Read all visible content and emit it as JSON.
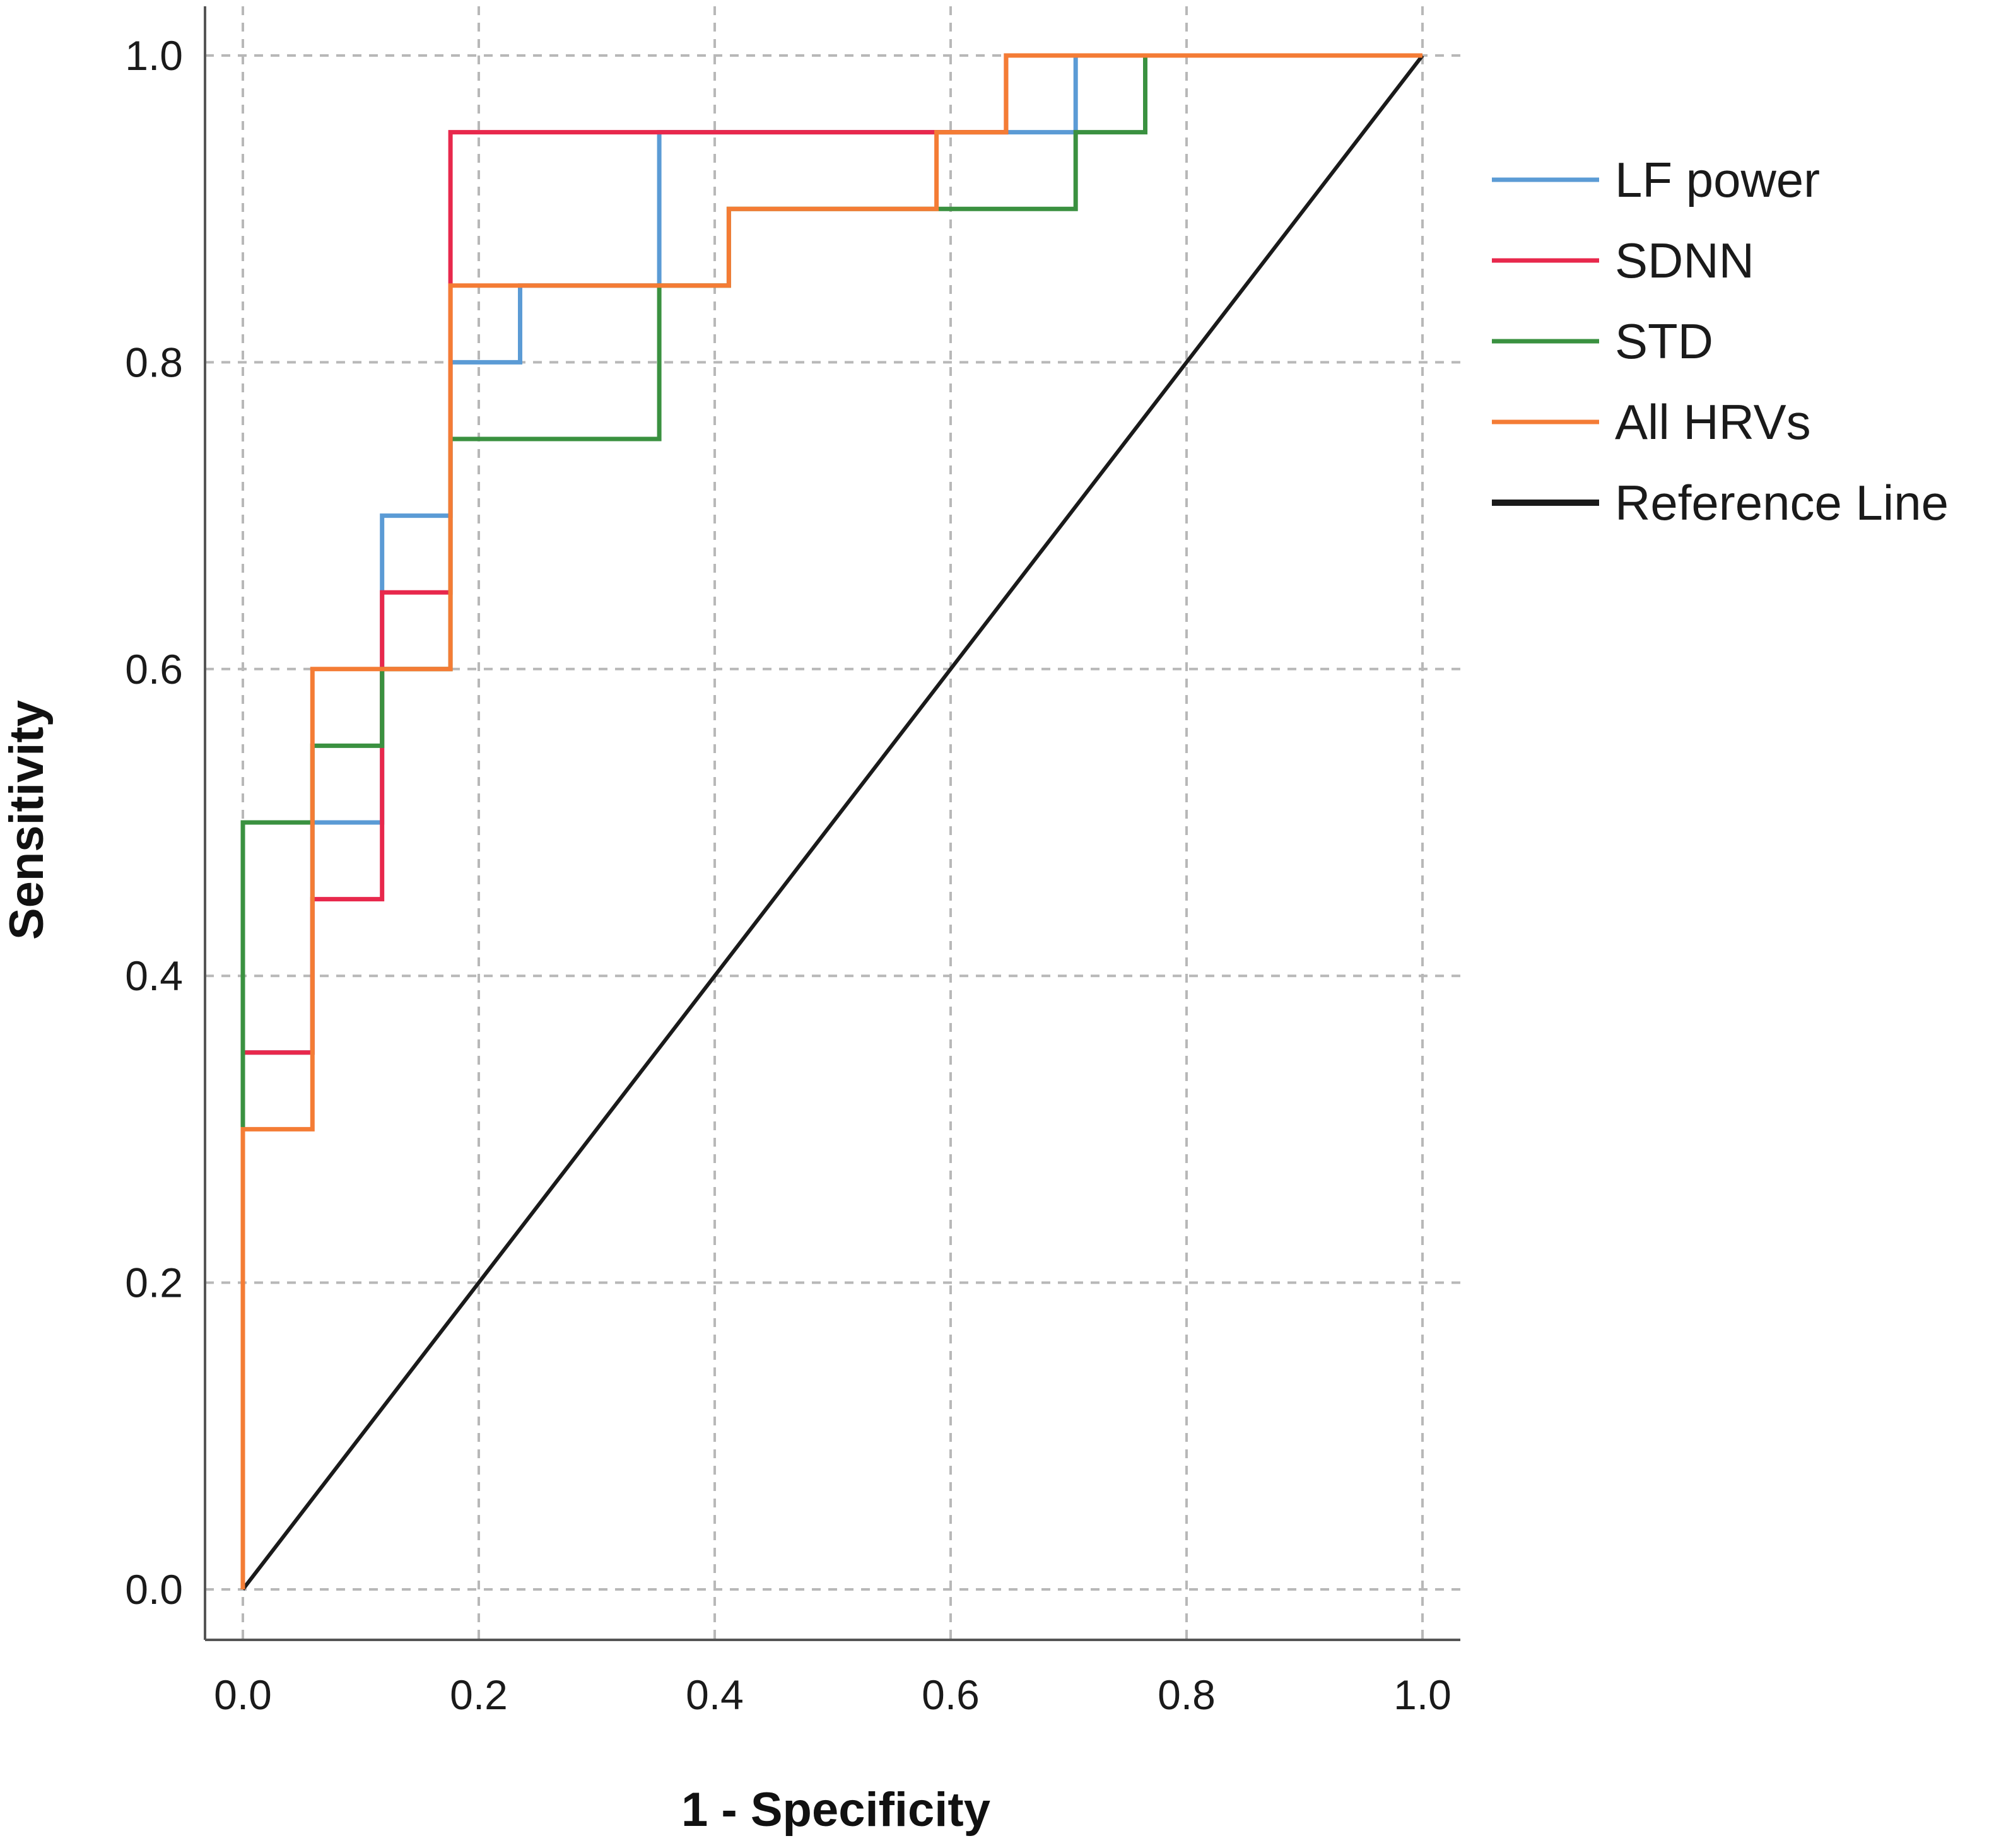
{
  "chart_data": {
    "type": "line",
    "title": "",
    "xlabel": "1 - Specificity",
    "ylabel": "Sensitivity",
    "xlim": [
      0,
      1
    ],
    "ylim": [
      0,
      1
    ],
    "grid": true,
    "legend_position": "right",
    "x_ticks": [
      "0.0",
      "0.2",
      "0.4",
      "0.6",
      "0.8",
      "1.0"
    ],
    "y_ticks": [
      "0.0",
      "0.2",
      "0.4",
      "0.6",
      "0.8",
      "1.0"
    ],
    "series": [
      {
        "name": "LF power",
        "color": "#5b9bd5",
        "points": [
          [
            0,
            0
          ],
          [
            0,
            0.3
          ],
          [
            0,
            0.35
          ],
          [
            0.059,
            0.35
          ],
          [
            0.059,
            0.5
          ],
          [
            0.118,
            0.5
          ],
          [
            0.118,
            0.7
          ],
          [
            0.176,
            0.7
          ],
          [
            0.176,
            0.8
          ],
          [
            0.235,
            0.8
          ],
          [
            0.235,
            0.85
          ],
          [
            0.353,
            0.85
          ],
          [
            0.353,
            0.95
          ],
          [
            0.706,
            0.95
          ],
          [
            0.706,
            1.0
          ],
          [
            1.0,
            1.0
          ]
        ]
      },
      {
        "name": "SDNN",
        "color": "#e8284c",
        "points": [
          [
            0,
            0
          ],
          [
            0,
            0.35
          ],
          [
            0.059,
            0.35
          ],
          [
            0.059,
            0.45
          ],
          [
            0.118,
            0.45
          ],
          [
            0.118,
            0.65
          ],
          [
            0.176,
            0.65
          ],
          [
            0.176,
            0.95
          ],
          [
            0.588,
            0.95
          ],
          [
            0.647,
            0.95
          ],
          [
            0.647,
            1.0
          ],
          [
            1.0,
            1.0
          ]
        ]
      },
      {
        "name": "STD",
        "color": "#3a9140",
        "points": [
          [
            0,
            0
          ],
          [
            0,
            0.5
          ],
          [
            0.059,
            0.5
          ],
          [
            0.059,
            0.55
          ],
          [
            0.118,
            0.55
          ],
          [
            0.118,
            0.6
          ],
          [
            0.176,
            0.6
          ],
          [
            0.176,
            0.75
          ],
          [
            0.353,
            0.75
          ],
          [
            0.353,
            0.85
          ],
          [
            0.412,
            0.85
          ],
          [
            0.412,
            0.9
          ],
          [
            0.706,
            0.9
          ],
          [
            0.706,
            0.95
          ],
          [
            0.765,
            0.95
          ],
          [
            0.765,
            1.0
          ],
          [
            1.0,
            1.0
          ]
        ]
      },
      {
        "name": "All HRVs",
        "color": "#f47c35",
        "points": [
          [
            0,
            0
          ],
          [
            0,
            0.3
          ],
          [
            0.059,
            0.3
          ],
          [
            0.059,
            0.6
          ],
          [
            0.176,
            0.6
          ],
          [
            0.176,
            0.85
          ],
          [
            0.412,
            0.85
          ],
          [
            0.412,
            0.9
          ],
          [
            0.588,
            0.9
          ],
          [
            0.588,
            0.95
          ],
          [
            0.647,
            0.95
          ],
          [
            0.647,
            1.0
          ],
          [
            1.0,
            1.0
          ]
        ]
      },
      {
        "name": "Reference Line",
        "color": "#1a1a1a",
        "points": [
          [
            0,
            0
          ],
          [
            1,
            1
          ]
        ]
      }
    ]
  }
}
